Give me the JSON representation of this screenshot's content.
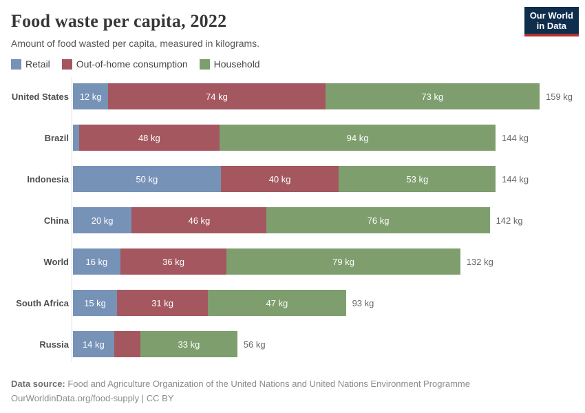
{
  "header": {
    "logo": {
      "line1": "Our World",
      "line2": "in Data"
    }
  },
  "colors": {
    "retail_blue": "#7792b7",
    "out_of_home_red": "#a4575f",
    "household_green": "#7e9e6e",
    "logo_bg": "#0f2e4e",
    "logo_accent": "#b5312c",
    "axis_gray": "#dddddd"
  },
  "chart_data": {
    "type": "bar",
    "orientation": "horizontal",
    "stacked": true,
    "title": "Food waste per capita, 2022",
    "subtitle": "Amount of food wasted per capita, measured in kilograms.",
    "unit": "kg",
    "x_max": 159,
    "legend_position": "top",
    "grid": false,
    "series": [
      {
        "name": "Retail",
        "color": "#7792b7"
      },
      {
        "name": "Out-of-home consumption",
        "color": "#a4575f"
      },
      {
        "name": "Household",
        "color": "#7e9e6e"
      }
    ],
    "categories": [
      "United States",
      "Brazil",
      "Indonesia",
      "China",
      "World",
      "South Africa",
      "Russia"
    ],
    "rows": [
      {
        "entity": "United States",
        "values": [
          12,
          74,
          73
        ],
        "segment_labels": [
          "12 kg",
          "74 kg",
          "73 kg"
        ],
        "total": 159,
        "total_label": "159 kg"
      },
      {
        "entity": "Brazil",
        "values": [
          2,
          48,
          94
        ],
        "segment_labels": [
          "",
          "48 kg",
          "94 kg"
        ],
        "total": 144,
        "total_label": "144 kg"
      },
      {
        "entity": "Indonesia",
        "values": [
          50,
          40,
          53
        ],
        "segment_labels": [
          "50 kg",
          "40 kg",
          "53 kg"
        ],
        "total": 144,
        "total_label": "144 kg"
      },
      {
        "entity": "China",
        "values": [
          20,
          46,
          76
        ],
        "segment_labels": [
          "20 kg",
          "46 kg",
          "76 kg"
        ],
        "total": 142,
        "total_label": "142 kg"
      },
      {
        "entity": "World",
        "values": [
          16,
          36,
          79
        ],
        "segment_labels": [
          "16 kg",
          "36 kg",
          "79 kg"
        ],
        "total": 132,
        "total_label": "132 kg"
      },
      {
        "entity": "South Africa",
        "values": [
          15,
          31,
          47
        ],
        "segment_labels": [
          "15 kg",
          "31 kg",
          "47 kg"
        ],
        "total": 93,
        "total_label": "93 kg"
      },
      {
        "entity": "Russia",
        "values": [
          14,
          9,
          33
        ],
        "segment_labels": [
          "14 kg",
          "",
          "33 kg"
        ],
        "total": 56,
        "total_label": "56 kg"
      }
    ]
  },
  "footer": {
    "source_bold": "Data source:",
    "source_text": " Food and Agriculture Organization of the United Nations and United Nations Environment Programme",
    "attribution": "OurWorldinData.org/food-supply | CC BY"
  }
}
